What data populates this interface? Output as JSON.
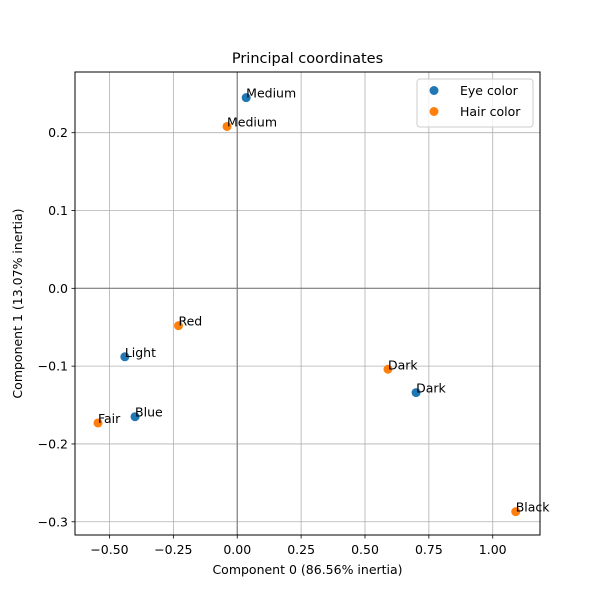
{
  "chart_data": {
    "type": "scatter",
    "title": "Principal coordinates",
    "xlabel": "Component 0 (86.56% inertia)",
    "ylabel": "Component 1 (13.07% inertia)",
    "xlim": [
      -0.635,
      1.185
    ],
    "ylim": [
      -0.317,
      0.278
    ],
    "grid": true,
    "legend_position": "top-right",
    "x_ticks": [
      -0.5,
      -0.25,
      0.0,
      0.25,
      0.5,
      0.75,
      1.0
    ],
    "x_tick_labels": [
      "−0.50",
      "−0.25",
      "0.00",
      "0.25",
      "0.50",
      "0.75",
      "1.00"
    ],
    "y_ticks": [
      -0.3,
      -0.2,
      -0.1,
      0.0,
      0.1,
      0.2
    ],
    "y_tick_labels": [
      "−0.3",
      "−0.2",
      "−0.1",
      "0.0",
      "0.1",
      "0.2"
    ],
    "series": [
      {
        "name": "Eye color",
        "color": "#1f77b4",
        "points": [
          {
            "label": "Light",
            "x": -0.44,
            "y": -0.088
          },
          {
            "label": "Blue",
            "x": -0.4,
            "y": -0.165
          },
          {
            "label": "Medium",
            "x": 0.035,
            "y": 0.245
          },
          {
            "label": "Dark",
            "x": 0.7,
            "y": -0.134
          }
        ]
      },
      {
        "name": "Hair color",
        "color": "#ff7f0e",
        "points": [
          {
            "label": "Fair",
            "x": -0.545,
            "y": -0.173
          },
          {
            "label": "Red",
            "x": -0.23,
            "y": -0.048
          },
          {
            "label": "Medium",
            "x": -0.04,
            "y": 0.208
          },
          {
            "label": "Dark",
            "x": 0.59,
            "y": -0.104
          },
          {
            "label": "Black",
            "x": 1.09,
            "y": -0.287
          }
        ]
      }
    ]
  }
}
